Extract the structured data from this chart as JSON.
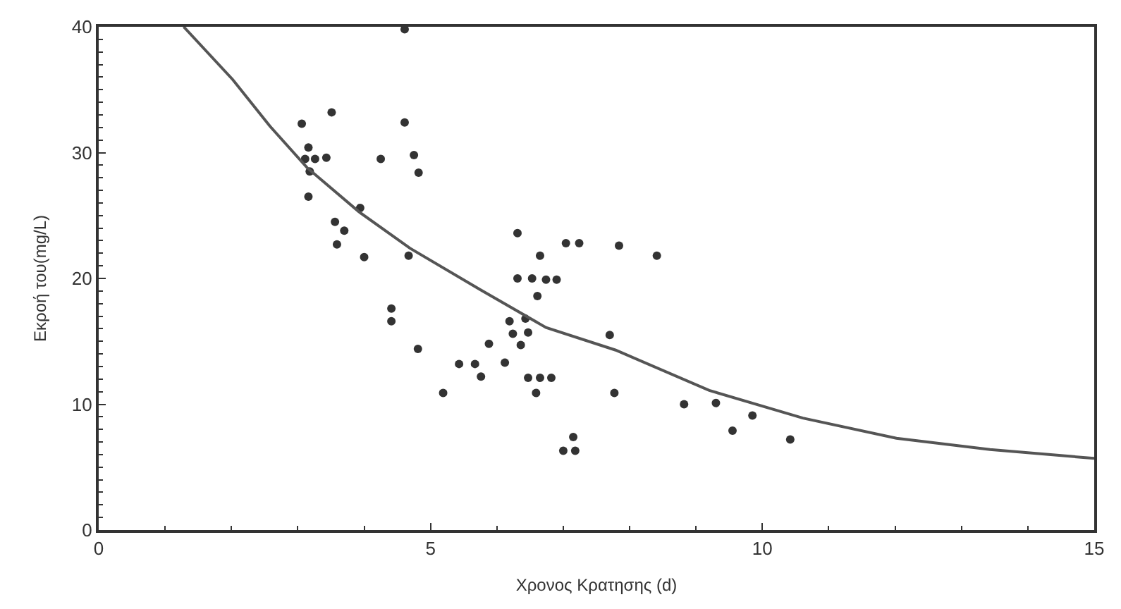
{
  "chart_data": {
    "type": "scatter",
    "xlabel": "Χρονος Κρατησης (d)",
    "ylabel": "Εκροή του(mg/L)",
    "xlim": [
      0,
      15
    ],
    "ylim": [
      0,
      40
    ],
    "xticks": [
      0,
      5,
      10,
      15
    ],
    "yticks": [
      0,
      10,
      20,
      30,
      40
    ],
    "series": [
      {
        "marker": "circle",
        "color": "#333333",
        "x": [
          3.06,
          3.51,
          4.61,
          3.16,
          3.11,
          3.26,
          3.43,
          4.25,
          4.75,
          4.82,
          3.18,
          3.16,
          3.94,
          3.56,
          3.7,
          3.59,
          4.0,
          4.67,
          6.31,
          7.04,
          7.24,
          7.84,
          8.41,
          6.65,
          6.31,
          6.53,
          6.74,
          6.9,
          6.61,
          4.41,
          4.41,
          6.19,
          6.43,
          6.24,
          6.47,
          6.36,
          5.88,
          4.81,
          7.7,
          5.43,
          5.67,
          6.12,
          5.76,
          6.47,
          6.65,
          6.82,
          5.19,
          6.59,
          7.77,
          7.15,
          7.0,
          7.18,
          4.61,
          8.82,
          9.3,
          9.85,
          9.55,
          10.42
        ],
        "values": [
          32.3,
          33.2,
          32.4,
          30.4,
          29.5,
          29.5,
          29.6,
          29.5,
          29.8,
          28.4,
          28.5,
          26.5,
          25.6,
          24.5,
          23.8,
          22.7,
          21.7,
          21.8,
          23.6,
          22.8,
          22.8,
          22.6,
          21.8,
          21.8,
          20.0,
          20.0,
          19.9,
          19.9,
          18.6,
          17.6,
          16.6,
          16.6,
          16.8,
          15.6,
          15.7,
          14.7,
          14.8,
          14.4,
          15.5,
          13.2,
          13.2,
          13.3,
          12.2,
          12.1,
          12.1,
          12.1,
          10.9,
          10.9,
          10.9,
          7.4,
          6.3,
          6.3,
          39.8,
          10.0,
          10.1,
          9.1,
          7.9,
          7.2
        ]
      },
      {
        "type": "line",
        "marker": "none",
        "line_style": "solid",
        "color": "#555555",
        "x": [
          1.28,
          2.02,
          2.58,
          3.14,
          3.92,
          4.69,
          5.75,
          6.74,
          7.79,
          9.2,
          10.61,
          12.02,
          13.43,
          15
        ],
        "values": [
          40,
          35.8,
          32.1,
          28.8,
          25.3,
          22.4,
          19.1,
          16.1,
          14.3,
          11.1,
          8.9,
          7.3,
          6.4,
          5.7
        ]
      }
    ]
  }
}
